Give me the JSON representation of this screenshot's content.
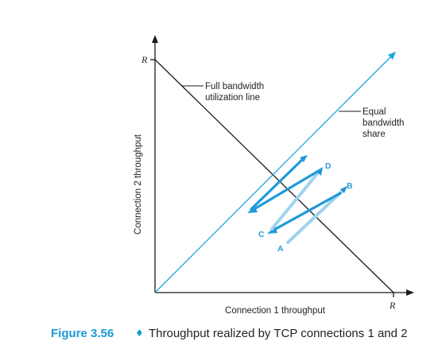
{
  "diagram": {
    "y_axis_label": "Connection 2 throughput",
    "x_axis_label": "Connection 1 throughput",
    "y_axis_max_label": "R",
    "x_axis_max_label": "R",
    "full_bandwidth_label": [
      "Full bandwidth",
      "utilization line"
    ],
    "equal_share_label": [
      "Equal",
      "bandwidth",
      "share"
    ],
    "points": {
      "A": "A",
      "B": "B",
      "C": "C",
      "D": "D"
    },
    "colors": {
      "accent": "#19a4e0",
      "arrow_light": "#9fd3ef",
      "axis": "#1a1a1a"
    }
  },
  "caption": {
    "number": "Figure 3.56",
    "separator": "♦",
    "text": "Throughput realized by TCP connections 1 and 2"
  }
}
